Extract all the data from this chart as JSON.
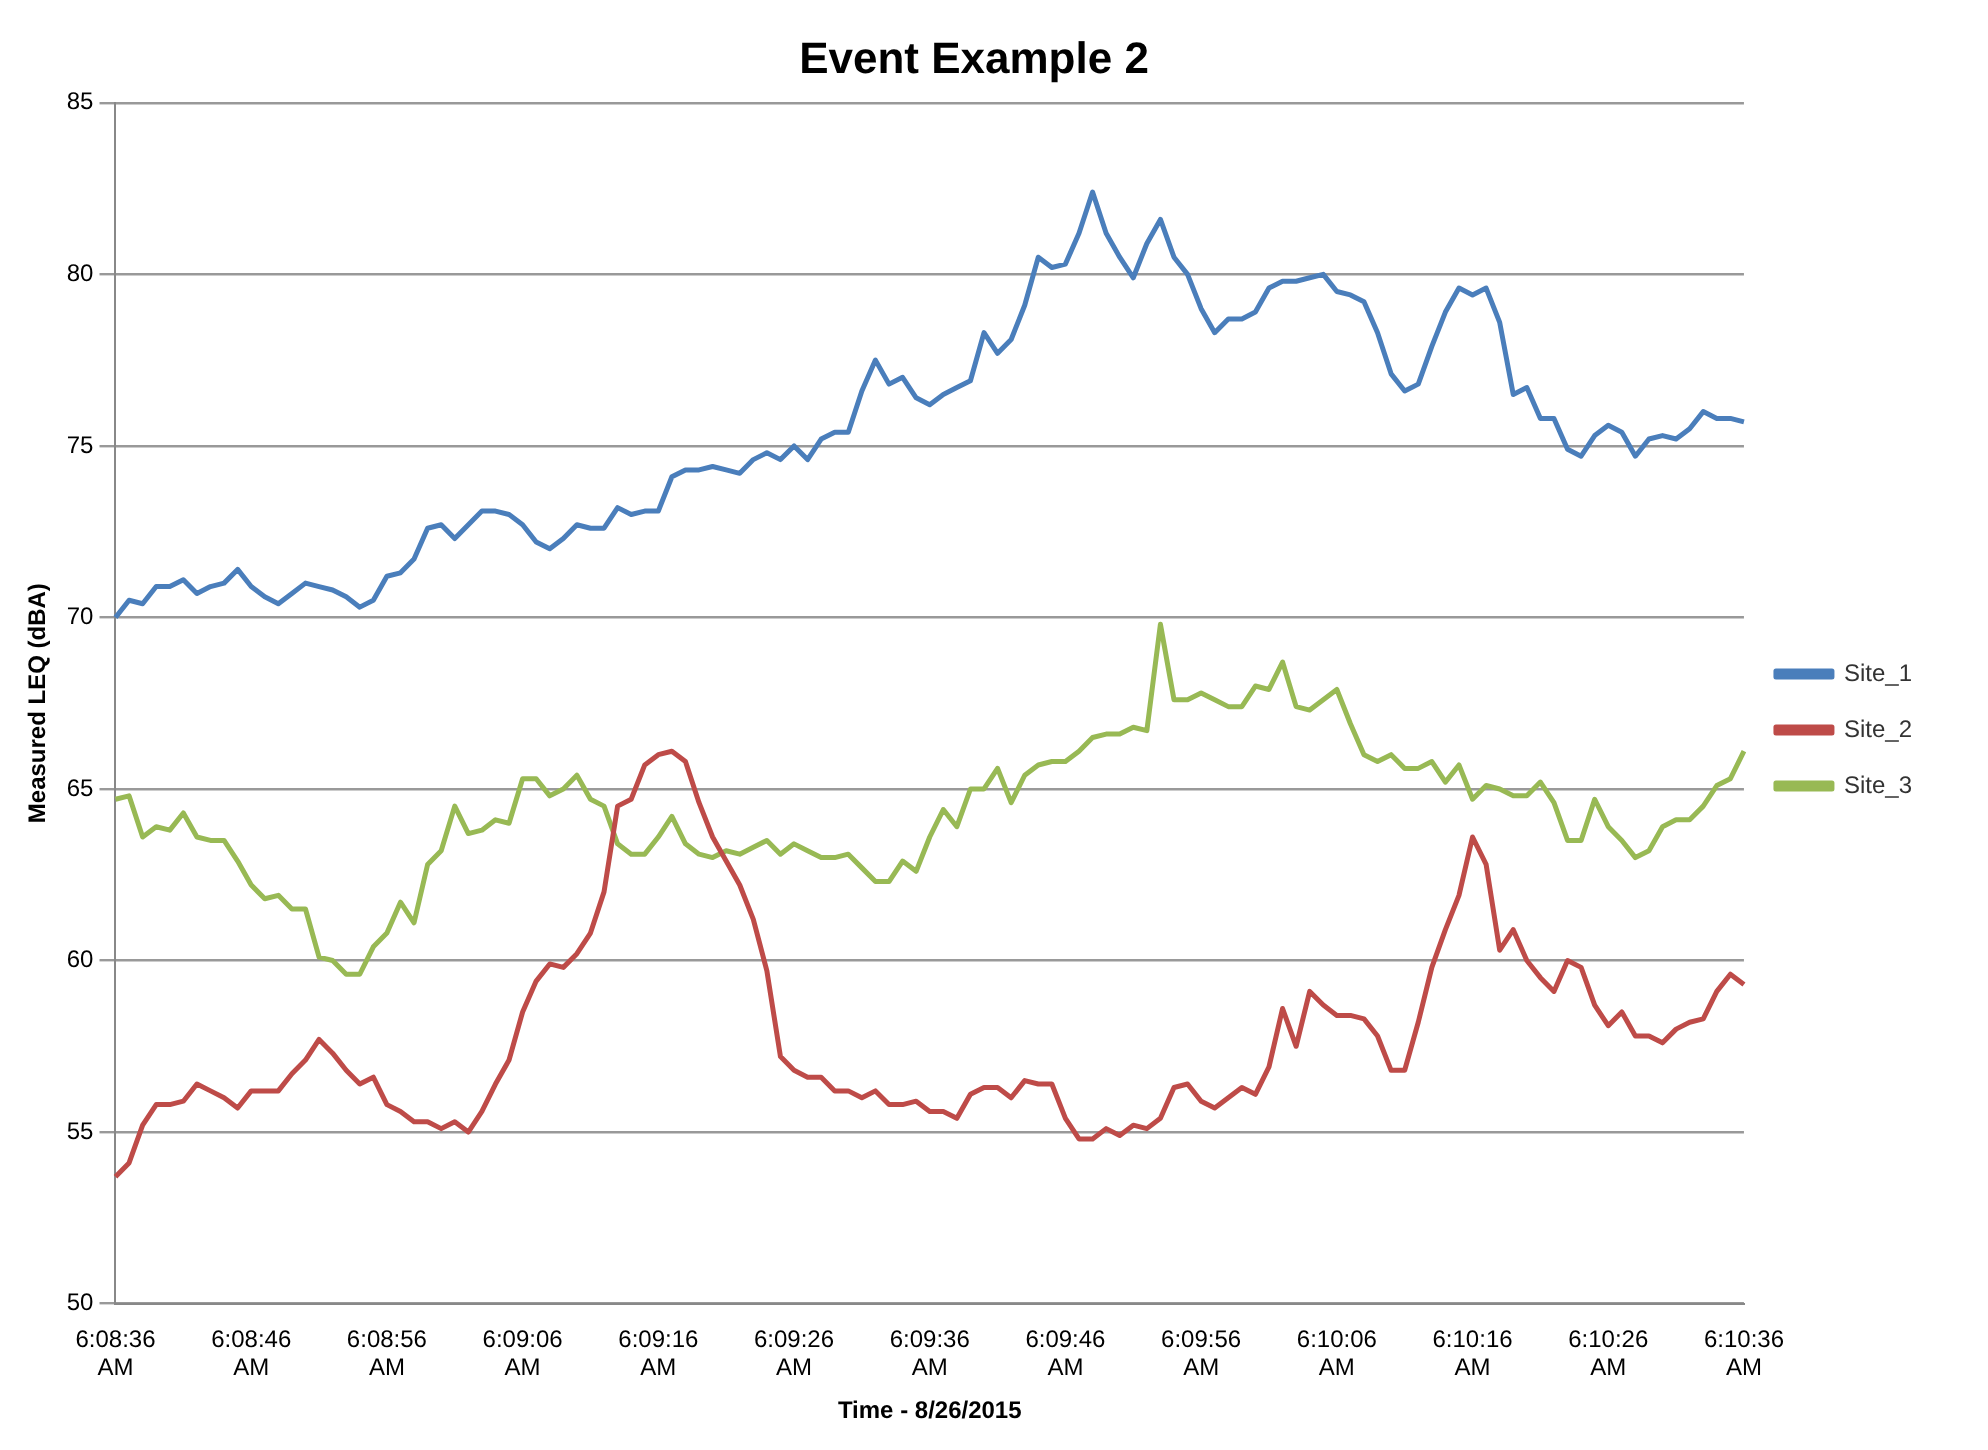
{
  "chart_data": {
    "type": "line",
    "title": "Event Example 2",
    "xlabel": "Time - 8/26/2015",
    "ylabel": "Measured LEQ (dBA)",
    "categories": [
      "6:08:36 AM",
      null,
      null,
      null,
      null,
      null,
      null,
      null,
      null,
      null,
      "6:08:46 AM",
      null,
      null,
      null,
      null,
      null,
      null,
      null,
      null,
      null,
      "6:08:56 AM",
      null,
      null,
      null,
      null,
      null,
      null,
      null,
      null,
      null,
      "6:09:06 AM",
      null,
      null,
      null,
      null,
      null,
      null,
      null,
      null,
      null,
      "6:09:16 AM",
      null,
      null,
      null,
      null,
      null,
      null,
      null,
      null,
      null,
      "6:09:26 AM",
      null,
      null,
      null,
      null,
      null,
      null,
      null,
      null,
      null,
      "6:09:36 AM",
      null,
      null,
      null,
      null,
      null,
      null,
      null,
      null,
      null,
      "6:09:46 AM",
      null,
      null,
      null,
      null,
      null,
      null,
      null,
      null,
      null,
      "6:09:56 AM",
      null,
      null,
      null,
      null,
      null,
      null,
      null,
      null,
      null,
      "6:10:06 AM",
      null,
      null,
      null,
      null,
      null,
      null,
      null,
      null,
      null,
      "6:10:16 AM",
      null,
      null,
      null,
      null,
      null,
      null,
      null,
      null,
      null,
      "6:10:26 AM",
      null,
      null,
      null,
      null,
      null,
      null,
      null,
      null,
      null,
      "6:10:36 AM"
    ],
    "series": [
      {
        "name": "Site_1",
        "color": "#4a7ebb",
        "values": [
          70.0,
          70.5,
          70.4,
          70.9,
          70.9,
          71.1,
          70.7,
          70.9,
          71.0,
          71.4,
          70.9,
          70.6,
          70.4,
          70.7,
          71.0,
          70.9,
          70.8,
          70.6,
          70.3,
          70.5,
          71.2,
          71.3,
          71.7,
          72.6,
          72.7,
          72.3,
          72.7,
          73.1,
          73.1,
          73.0,
          72.7,
          72.2,
          72.0,
          72.3,
          72.7,
          72.6,
          72.6,
          73.2,
          73.0,
          73.1,
          73.1,
          74.1,
          74.3,
          74.3,
          74.4,
          74.3,
          74.2,
          74.6,
          74.8,
          74.6,
          75.0,
          74.6,
          75.2,
          75.4,
          75.4,
          76.6,
          77.5,
          76.8,
          77.0,
          76.4,
          76.2,
          76.5,
          76.7,
          76.9,
          78.3,
          77.7,
          78.1,
          79.1,
          80.5,
          80.2,
          80.3,
          81.2,
          82.4,
          81.2,
          80.5,
          79.9,
          80.9,
          81.6,
          80.5,
          80.0,
          79.0,
          78.3,
          78.7,
          78.7,
          78.9,
          79.6,
          79.8,
          79.8,
          79.9,
          80.0,
          79.5,
          79.4,
          79.2,
          78.3,
          77.1,
          76.6,
          76.8,
          77.9,
          78.9,
          79.6,
          79.4,
          79.6,
          78.6,
          76.5,
          76.7,
          75.8,
          75.8,
          74.9,
          74.7,
          75.3,
          75.6,
          75.4,
          74.7,
          75.2,
          75.3,
          75.2,
          75.5,
          76.0,
          75.8,
          75.8,
          75.7
        ]
      },
      {
        "name": "Site_2",
        "color": "#be4b48",
        "values": [
          53.7,
          54.1,
          55.2,
          55.8,
          55.8,
          55.9,
          56.4,
          56.2,
          56.0,
          55.7,
          56.2,
          56.2,
          56.2,
          56.7,
          57.1,
          57.7,
          57.3,
          56.8,
          56.4,
          56.6,
          55.8,
          55.6,
          55.3,
          55.3,
          55.1,
          55.3,
          55.0,
          55.6,
          56.4,
          57.1,
          58.5,
          59.4,
          59.9,
          59.8,
          60.2,
          60.8,
          62.0,
          64.5,
          64.7,
          65.7,
          66.0,
          66.1,
          65.8,
          64.6,
          63.6,
          62.9,
          62.2,
          61.2,
          59.7,
          57.2,
          56.8,
          56.6,
          56.6,
          56.2,
          56.2,
          56.0,
          56.2,
          55.8,
          55.8,
          55.9,
          55.6,
          55.6,
          55.4,
          56.1,
          56.3,
          56.3,
          56.0,
          56.5,
          56.4,
          56.4,
          55.4,
          54.8,
          54.8,
          55.1,
          54.9,
          55.2,
          55.1,
          55.4,
          56.3,
          56.4,
          55.9,
          55.7,
          56.0,
          56.3,
          56.1,
          56.9,
          58.6,
          57.5,
          59.1,
          58.7,
          58.4,
          58.4,
          58.3,
          57.8,
          56.8,
          56.8,
          58.2,
          59.8,
          60.9,
          61.9,
          63.6,
          62.8,
          60.3,
          60.9,
          60.0,
          59.5,
          59.1,
          60.0,
          59.8,
          58.7,
          58.1,
          58.5,
          57.8,
          57.8,
          57.6,
          58.0,
          58.2,
          58.3,
          59.1,
          59.6,
          59.3
        ]
      },
      {
        "name": "Site_3",
        "color": "#98b954",
        "values": [
          64.7,
          64.8,
          63.6,
          63.9,
          63.8,
          64.3,
          63.6,
          63.5,
          63.5,
          62.9,
          62.2,
          61.8,
          61.9,
          61.5,
          61.5,
          60.1,
          60.0,
          59.6,
          59.6,
          60.4,
          60.8,
          61.7,
          61.1,
          62.8,
          63.2,
          64.5,
          63.7,
          63.8,
          64.1,
          64.0,
          65.3,
          65.3,
          64.8,
          65.0,
          65.4,
          64.7,
          64.5,
          63.4,
          63.1,
          63.1,
          63.6,
          64.2,
          63.4,
          63.1,
          63.0,
          63.2,
          63.1,
          63.3,
          63.5,
          63.1,
          63.4,
          63.2,
          63.0,
          63.0,
          63.1,
          62.7,
          62.3,
          62.3,
          62.9,
          62.6,
          63.6,
          64.4,
          63.9,
          65.0,
          65.0,
          65.6,
          64.6,
          65.4,
          65.7,
          65.8,
          65.8,
          66.1,
          66.5,
          66.6,
          66.6,
          66.8,
          66.7,
          69.8,
          67.6,
          67.6,
          67.8,
          67.6,
          67.4,
          67.4,
          68.0,
          67.9,
          68.7,
          67.4,
          67.3,
          67.6,
          67.9,
          66.9,
          66.0,
          65.8,
          66.0,
          65.6,
          65.6,
          65.8,
          65.2,
          65.7,
          64.7,
          65.1,
          65.0,
          64.8,
          64.8,
          65.2,
          64.6,
          63.5,
          63.5,
          64.7,
          63.9,
          63.5,
          63.0,
          63.2,
          63.9,
          64.1,
          64.1,
          64.5,
          65.1,
          65.3,
          66.1
        ]
      }
    ],
    "ylim": [
      50,
      85
    ],
    "yticks": [
      50,
      55,
      60,
      65,
      70,
      75,
      80,
      85
    ],
    "grid": "y",
    "legend": "right",
    "marker": "none",
    "line_style": "solid"
  }
}
